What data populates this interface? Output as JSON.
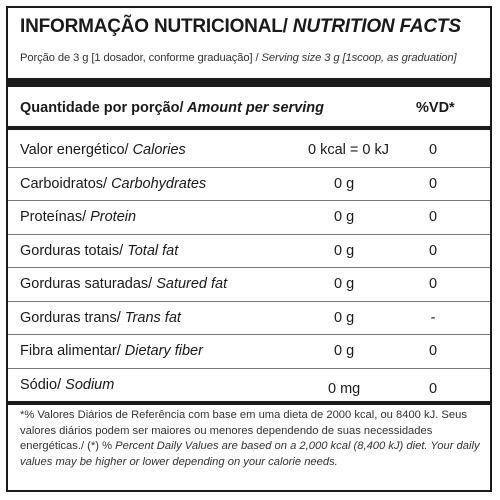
{
  "title": {
    "pt": "INFORMAÇÃO NUTRICIONAL/",
    "en": " NUTRITION FACTS"
  },
  "serving": {
    "pt": "Porção de 3 g  [1 dosador, conforme graduação] /",
    "en": " Serving size 3 g  [1scoop, as graduation]"
  },
  "header": {
    "pt": "Quantidade por porção/",
    "en": " Amount per serving",
    "vd": "%VD*"
  },
  "rows": [
    {
      "pt": "Valor energético/",
      "en": " Calories",
      "amount": "0 kcal = 0 kJ",
      "vd": "0"
    },
    {
      "pt": "Carboidratos/",
      "en": " Carbohydrates",
      "amount": "0 g",
      "vd": "0"
    },
    {
      "pt": "Proteínas/",
      "en": " Protein",
      "amount": "0 g",
      "vd": "0"
    },
    {
      "pt": "Gorduras totais/",
      "en": " Total fat",
      "amount": "0 g",
      "vd": "0"
    },
    {
      "pt": "Gorduras saturadas/",
      "en": " Satured fat",
      "amount": "0 g",
      "vd": "0"
    },
    {
      "pt": "Gorduras trans/",
      "en": " Trans fat",
      "amount": "0 g",
      "vd": "-"
    },
    {
      "pt": "Fibra alimentar/",
      "en": " Dietary fiber",
      "amount": "0 g",
      "vd": "0"
    },
    {
      "pt": "Sódio/",
      "en": " Sodium",
      "amount": "0 mg",
      "vd": "0"
    }
  ],
  "footnote": {
    "pt": "*% Valores Diários de Referência com base em uma dieta de 2000 kcal, ou 8400 kJ. Seus valores diários podem ser maiores ou menores dependendo de suas necessidades energéticas./ (*) %",
    "en": " Percent Daily Values are based on a 2,000 kcal (8,400 kJ) diet. Your daily values may be higher or lower depending on your calorie needs."
  }
}
